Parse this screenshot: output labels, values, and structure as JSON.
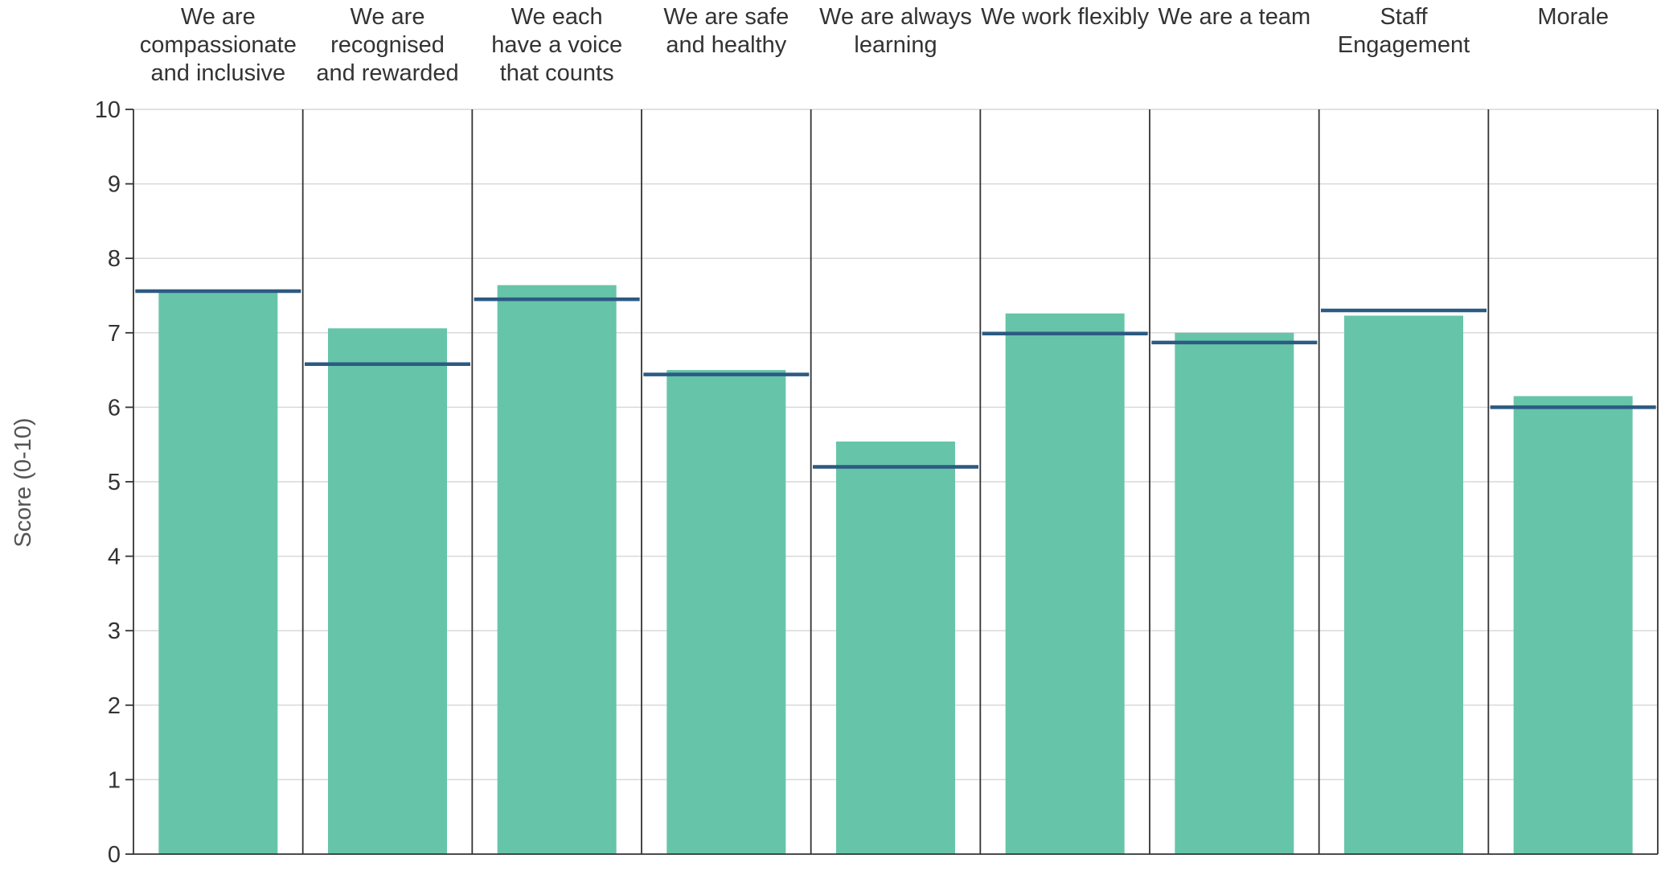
{
  "chart_data": {
    "type": "bar",
    "title": "",
    "xlabel": "",
    "ylabel": "Score (0-10)",
    "ylim": [
      0,
      10
    ],
    "yticks": [
      "0",
      "1",
      "2",
      "3",
      "4",
      "5",
      "6",
      "7",
      "8",
      "9",
      "10"
    ],
    "grid": true,
    "categories": [
      [
        "We are",
        "compassionate",
        "and inclusive"
      ],
      [
        "We are",
        "recognised",
        "and rewarded"
      ],
      [
        "We each",
        "have a voice",
        "that counts"
      ],
      [
        "We are safe",
        "and healthy"
      ],
      [
        "We are always",
        "learning"
      ],
      [
        "We work flexibly"
      ],
      [
        "We are a team"
      ],
      [
        "Staff",
        "Engagement"
      ],
      [
        "Morale"
      ]
    ],
    "series": [
      {
        "type": "bar",
        "values": [
          7.55,
          7.06,
          7.64,
          6.5,
          5.54,
          7.26,
          7.0,
          7.23,
          6.15
        ]
      },
      {
        "type": "marker-line",
        "values": [
          7.56,
          6.58,
          7.45,
          6.44,
          5.2,
          6.99,
          6.87,
          7.3,
          6.0
        ]
      }
    ],
    "colors": {
      "bar": "#66c4a9",
      "marker": "#2c5a82",
      "grid": "#d9d9d9",
      "axis": "#333333"
    }
  }
}
